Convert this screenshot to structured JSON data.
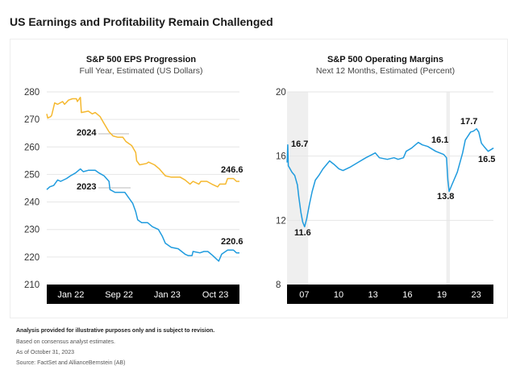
{
  "page_title": "US Earnings and Profitability Remain Challenged",
  "footer": {
    "disclaimer": "Analysis provided for illustrative purposes only and is subject to revision.",
    "basis": "Based on consensus analyst estimates.",
    "as_of": "As of October 31, 2023",
    "source": "Source: FactSet and AllianceBernstein (AB)"
  },
  "chart_data": [
    {
      "type": "line",
      "title": "S&P 500 EPS Progression",
      "subtitle": "Full Year, Estimated (US Dollars)",
      "ylim": [
        210,
        280
      ],
      "yticks": [
        210,
        220,
        230,
        240,
        250,
        260,
        270,
        280
      ],
      "xlim": [
        2021.9,
        2023.85
      ],
      "xtick_labels": [
        "Jan 22",
        "Sep 22",
        "Jan 23",
        "Oct 23"
      ],
      "grid": true,
      "series": [
        {
          "name": "2024",
          "color": "#F5B82E",
          "x": [
            2021.9,
            2021.91,
            2021.94,
            2021.95,
            2021.98,
            2022.01,
            2022.06,
            2022.08,
            2022.12,
            2022.16,
            2022.2,
            2022.21,
            2022.24,
            2022.25,
            2022.32,
            2022.36,
            2022.39,
            2022.44,
            2022.48,
            2022.53,
            2022.57,
            2022.62,
            2022.67,
            2022.7,
            2022.76,
            2022.8,
            2022.81,
            2022.84,
            2022.91,
            2022.93,
            2022.99,
            2023.04,
            2023.1,
            2023.16,
            2023.25,
            2023.3,
            2023.35,
            2023.38,
            2023.44,
            2023.46,
            2023.52,
            2023.57,
            2023.63,
            2023.65,
            2023.71,
            2023.73,
            2023.79,
            2023.82,
            2023.85
          ],
          "y": [
            272,
            270.5,
            271,
            271.5,
            276,
            275.5,
            276.5,
            275.5,
            277,
            277.5,
            277.5,
            276.5,
            278,
            272.5,
            273,
            272,
            272.5,
            271,
            268.5,
            265.5,
            264,
            263.5,
            263.5,
            262,
            260.5,
            258,
            255,
            253.5,
            254,
            254.5,
            253.5,
            252,
            249.5,
            249,
            249,
            248,
            246.5,
            247.5,
            246.5,
            247.5,
            247.5,
            246.5,
            245.5,
            246.5,
            246.5,
            248.5,
            248.5,
            247.5,
            247.5
          ]
        },
        {
          "name": "2023",
          "color": "#1F9BDE",
          "x": [
            2021.9,
            2021.93,
            2021.97,
            2022.01,
            2022.04,
            2022.1,
            2022.14,
            2022.19,
            2022.24,
            2022.27,
            2022.32,
            2022.39,
            2022.43,
            2022.48,
            2022.53,
            2022.54,
            2022.59,
            2022.69,
            2022.73,
            2022.77,
            2022.8,
            2022.82,
            2022.86,
            2022.92,
            2022.97,
            2023.03,
            2023.07,
            2023.1,
            2023.16,
            2023.23,
            2023.3,
            2023.33,
            2023.37,
            2023.38,
            2023.45,
            2023.49,
            2023.53,
            2023.58,
            2023.61,
            2023.64,
            2023.67,
            2023.73,
            2023.79,
            2023.82,
            2023.85
          ],
          "y": [
            244.5,
            245.5,
            246,
            248,
            247.5,
            248.5,
            249.5,
            250.5,
            252,
            251,
            251.5,
            251.5,
            250.5,
            249.5,
            247.5,
            244.5,
            243.5,
            243.5,
            241.5,
            239.5,
            236.5,
            233.5,
            232.5,
            232.5,
            231,
            230,
            227.5,
            225,
            223.5,
            223,
            221,
            220.5,
            220.5,
            222,
            221.5,
            222,
            222,
            220.5,
            219.5,
            218.5,
            221,
            222.5,
            222.5,
            221.5,
            221.5
          ]
        }
      ],
      "annotations": [
        "2024",
        "2023",
        "246.6",
        "220.6"
      ]
    },
    {
      "type": "line",
      "title": "S&P 500 Operating Margins",
      "subtitle": "Next 12 Months, Estimated (Percent)",
      "ylim": [
        8,
        20
      ],
      "yticks": [
        8,
        12,
        16,
        20
      ],
      "xlim": [
        2006.25,
        2023.55
      ],
      "xtick_labels": [
        "07",
        "10",
        "13",
        "16",
        "19",
        "23"
      ],
      "grid": true,
      "shaded_periods": [
        [
          2006.25,
          2008.02
        ],
        [
          2019.6,
          2019.9
        ]
      ],
      "shade_color": "#EFEFEF",
      "series": [
        {
          "color": "#1F9BDE",
          "x": [
            2006.26,
            2006.31,
            2006.36,
            2006.66,
            2006.89,
            2007.12,
            2007.23,
            2007.41,
            2007.56,
            2007.72,
            2007.9,
            2008.13,
            2008.36,
            2008.62,
            2008.92,
            2009.26,
            2009.82,
            2010.16,
            2010.61,
            2010.94,
            2011.51,
            2012.18,
            2012.86,
            2013.65,
            2013.99,
            2014.66,
            2015.22,
            2015.56,
            2016.01,
            2016.24,
            2016.69,
            2017.25,
            2017.59,
            2018.04,
            2018.71,
            2019.39,
            2019.62,
            2019.73,
            2019.84,
            2020.06,
            2020.52,
            2020.97,
            2021.19,
            2021.64,
            2021.86,
            2022.14,
            2022.32,
            2022.54,
            2022.76,
            2023.11,
            2023.56
          ],
          "y": [
            15.6,
            16.7,
            15.4,
            15.0,
            14.8,
            14.2,
            13.5,
            12.5,
            11.9,
            11.6,
            12.1,
            13.0,
            13.8,
            14.5,
            14.8,
            15.2,
            15.7,
            15.5,
            15.2,
            15.1,
            15.3,
            15.6,
            15.9,
            16.2,
            15.9,
            15.8,
            15.9,
            15.8,
            15.9,
            16.3,
            16.5,
            16.85,
            16.7,
            16.6,
            16.3,
            16.1,
            15.9,
            14.5,
            13.8,
            14.2,
            15.0,
            16.2,
            17.0,
            17.5,
            17.55,
            17.7,
            17.5,
            16.8,
            16.6,
            16.3,
            16.5
          ]
        }
      ],
      "annotations": [
        "16.7",
        "11.6",
        "16.1",
        "13.8",
        "17.7",
        "16.5"
      ]
    }
  ]
}
